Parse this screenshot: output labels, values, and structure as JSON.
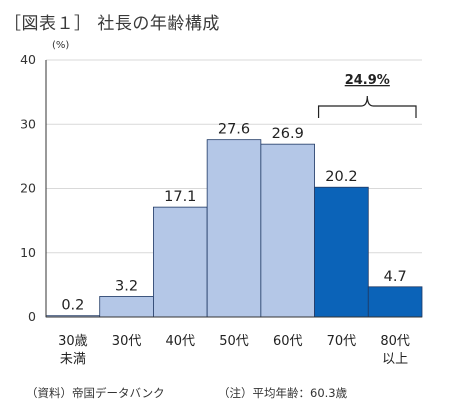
{
  "title": "［図表１］ 社長の年齢構成",
  "unit_label": "(%)",
  "source_note": "（資料）帝国データバンク",
  "avg_note": "（注）平均年齢：60.3歳",
  "colors": {
    "light": "#b4c7e7",
    "dark": "#0b63b8",
    "outline": "#1f3864"
  },
  "chart_data": {
    "type": "bar",
    "categories": [
      [
        "30歳",
        "未満"
      ],
      [
        "30代"
      ],
      [
        "40代"
      ],
      [
        "50代"
      ],
      [
        "60代"
      ],
      [
        "70代"
      ],
      [
        "80代",
        "以上"
      ]
    ],
    "values": [
      0.2,
      3.2,
      17.1,
      27.6,
      26.9,
      20.2,
      4.7
    ],
    "value_labels": [
      "0.2",
      "3.2",
      "17.1",
      "27.6",
      "26.9",
      "20.2",
      "4.7"
    ],
    "highlight": [
      false,
      false,
      false,
      false,
      false,
      true,
      true
    ],
    "ylim": [
      0,
      40
    ],
    "yticks": [
      0,
      10,
      20,
      30,
      40
    ],
    "grid": true,
    "annotation": {
      "text": "24.9%",
      "spans": [
        "70代",
        "80代以上"
      ]
    }
  }
}
